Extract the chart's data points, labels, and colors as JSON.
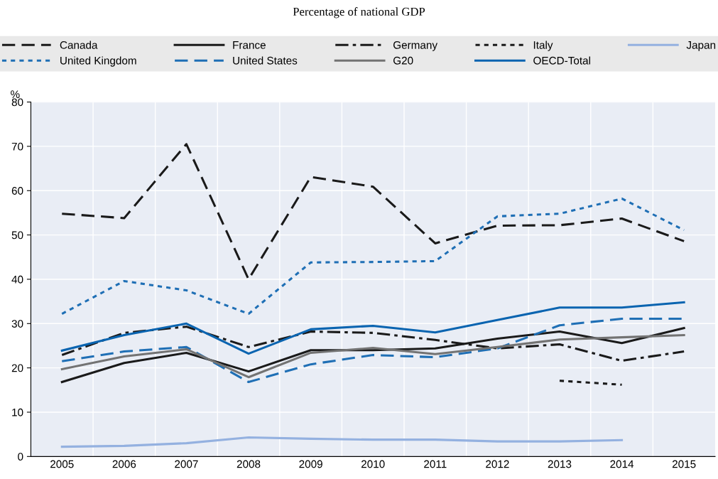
{
  "chart_data": {
    "type": "line",
    "title": "Percentage of national GDP",
    "ylabel": "%",
    "categories": [
      "2005",
      "2006",
      "2007",
      "2008",
      "2009",
      "2010",
      "2011",
      "2012",
      "2013",
      "2014",
      "2015"
    ],
    "ylim": [
      0,
      80
    ],
    "yticks": [
      0,
      10,
      20,
      30,
      40,
      50,
      60,
      70,
      80
    ],
    "grid": true,
    "legend": "top",
    "marker": "none",
    "series": [
      {
        "name": "Canada",
        "color": "#1a1a1a",
        "line_style": "dashed",
        "values": [
          54.8,
          53.8,
          70.5,
          40.0,
          63.1,
          60.9,
          48.1,
          52.1,
          52.2,
          53.7,
          48.6
        ]
      },
      {
        "name": "France",
        "color": "#1a1a1a",
        "line_style": "solid",
        "values": [
          16.8,
          21.1,
          23.4,
          19.2,
          24.0,
          24.0,
          24.4,
          26.6,
          28.2,
          25.6,
          29.0
        ]
      },
      {
        "name": "Germany",
        "color": "#1a1a1a",
        "line_style": "dashdot",
        "values": [
          22.9,
          27.9,
          29.3,
          24.7,
          28.2,
          27.9,
          26.3,
          24.4,
          25.3,
          21.6,
          23.7
        ]
      },
      {
        "name": "Italy",
        "color": "#1a1a1a",
        "line_style": "dotted",
        "values": [
          null,
          null,
          null,
          null,
          null,
          null,
          null,
          null,
          17.1,
          16.2,
          null
        ]
      },
      {
        "name": "Japan",
        "color": "#94b1e0",
        "line_style": "solid",
        "values": [
          2.2,
          2.4,
          3.0,
          4.3,
          4.0,
          3.8,
          3.8,
          3.4,
          3.4,
          3.7,
          null
        ]
      },
      {
        "name": "United Kingdom",
        "color": "#1f6fb5",
        "line_style": "dotted",
        "values": [
          32.2,
          39.6,
          37.5,
          32.2,
          43.8,
          43.9,
          44.1,
          54.2,
          54.8,
          58.2,
          51.1
        ]
      },
      {
        "name": "United States",
        "color": "#1f6fb5",
        "line_style": "dashed",
        "values": [
          21.5,
          23.7,
          24.7,
          16.8,
          20.8,
          22.9,
          22.4,
          24.4,
          29.6,
          31.1,
          31.1
        ]
      },
      {
        "name": "G20",
        "color": "#737373",
        "line_style": "solid",
        "values": [
          19.7,
          22.6,
          24.2,
          17.9,
          23.4,
          24.5,
          23.1,
          24.7,
          26.4,
          26.9,
          27.4
        ]
      },
      {
        "name": "OECD-Total",
        "color": "#0a64b0",
        "line_style": "solid",
        "values": [
          23.9,
          27.4,
          30.0,
          23.2,
          28.7,
          29.5,
          28.0,
          30.8,
          33.6,
          33.6,
          34.8
        ]
      }
    ]
  }
}
